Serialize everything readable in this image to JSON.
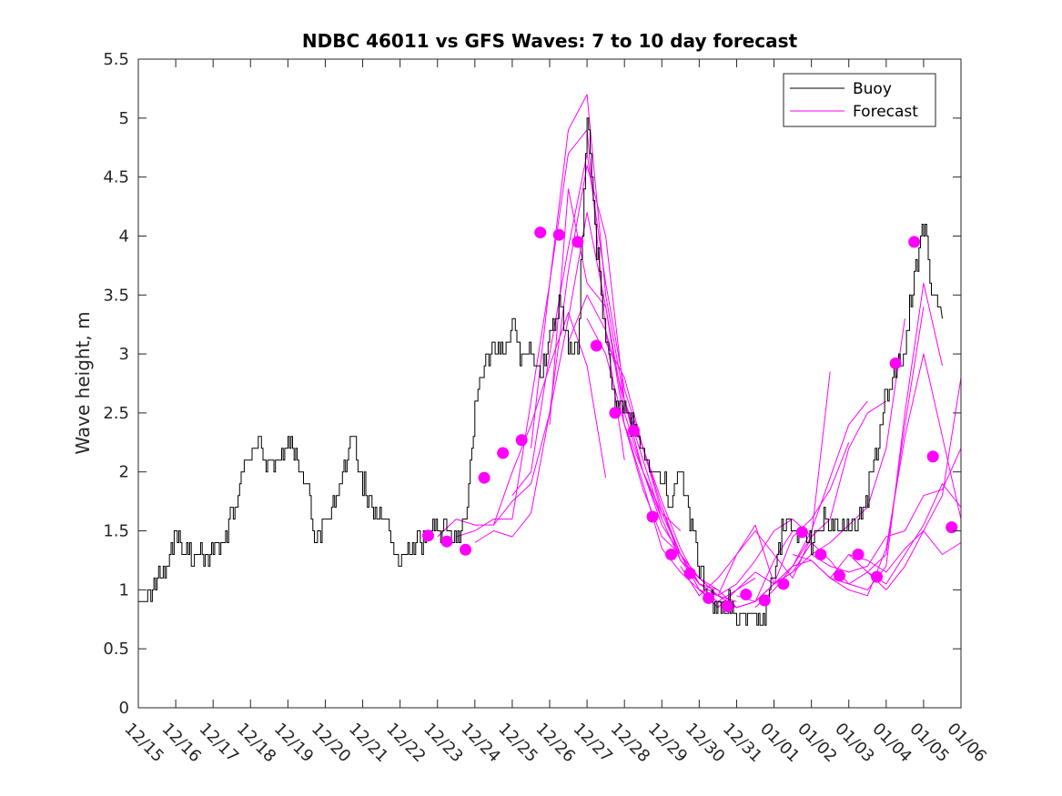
{
  "chart_data": {
    "type": "line",
    "title": "NDBC 46011 vs GFS Waves: 7 to 10 day forecast",
    "xlabel": "",
    "ylabel": "Wave height, m",
    "xlim": [
      0,
      22
    ],
    "ylim": [
      0,
      5.5
    ],
    "x_unit": "days since 12/15",
    "x_ticks": [
      0,
      1,
      2,
      3,
      4,
      5,
      6,
      7,
      8,
      9,
      10,
      11,
      12,
      13,
      14,
      15,
      16,
      17,
      18,
      19,
      20,
      21,
      22
    ],
    "x_tick_labels": [
      "12/15",
      "12/16",
      "12/17",
      "12/18",
      "12/19",
      "12/20",
      "12/21",
      "12/22",
      "12/23",
      "12/24",
      "12/25",
      "12/26",
      "12/27",
      "12/28",
      "12/29",
      "12/30",
      "12/31",
      "01/01",
      "01/02",
      "01/03",
      "01/04",
      "01/05",
      "01/06"
    ],
    "y_ticks": [
      0,
      0.5,
      1,
      1.5,
      2,
      2.5,
      3,
      3.5,
      4,
      4.5,
      5,
      5.5
    ],
    "y_tick_labels": [
      "0",
      "0.5",
      "1",
      "1.5",
      "2",
      "2.5",
      "3",
      "3.5",
      "4",
      "4.5",
      "5",
      "5.5"
    ],
    "legend": {
      "position": "top-right",
      "entries": [
        {
          "label": "Buoy",
          "color": "#000000"
        },
        {
          "label": "Forecast",
          "color": "#ff00ff"
        }
      ]
    },
    "buoy_color": "#000000",
    "forecast_color": "#ff00ff",
    "buoy_series": {
      "name": "Buoy",
      "x": [
        0,
        0.25,
        0.5,
        0.75,
        1,
        1.25,
        1.5,
        1.75,
        2,
        2.25,
        2.5,
        2.75,
        3,
        3.25,
        3.5,
        3.75,
        4,
        4.25,
        4.5,
        4.75,
        5,
        5.25,
        5.5,
        5.75,
        6,
        6.25,
        6.5,
        6.75,
        7,
        7.25,
        7.5,
        7.75,
        8,
        8.25,
        8.5,
        8.75,
        9,
        9.25,
        9.5,
        9.75,
        10,
        10.25,
        10.5,
        10.75,
        11,
        11.25,
        11.5,
        11.75,
        12,
        12.25,
        12.5,
        12.75,
        13,
        13.25,
        13.5,
        13.75,
        14,
        14.25,
        14.5,
        14.75,
        15,
        15.25,
        15.5,
        15.75,
        16,
        16.25,
        16.5,
        16.75,
        17,
        17.25,
        17.5,
        17.75,
        18,
        18.25,
        18.5,
        18.75,
        19,
        19.25,
        19.5,
        19.75,
        20,
        20.25,
        20.5,
        20.75,
        21,
        21.25,
        21.5
      ],
      "values": [
        1.0,
        0.95,
        1.15,
        1.2,
        1.5,
        1.35,
        1.25,
        1.3,
        1.35,
        1.4,
        1.65,
        1.9,
        2.15,
        2.2,
        2.05,
        2.15,
        2.2,
        2.15,
        1.85,
        1.45,
        1.55,
        1.7,
        2.05,
        2.3,
        1.9,
        1.7,
        1.6,
        1.5,
        1.25,
        1.3,
        1.4,
        1.5,
        1.5,
        1.55,
        1.45,
        1.6,
        2.5,
        2.85,
        3.1,
        2.95,
        3.3,
        2.95,
        3.05,
        2.85,
        3.2,
        3.4,
        3.05,
        3.0,
        5.1,
        3.9,
        3.1,
        2.6,
        2.5,
        2.4,
        2.2,
        1.95,
        1.95,
        1.75,
        2.05,
        1.6,
        1.2,
        0.95,
        0.8,
        0.9,
        0.8,
        0.75,
        0.75,
        0.8,
        1.1,
        1.55,
        1.5,
        1.5,
        1.4,
        1.6,
        1.55,
        1.5,
        1.6,
        1.55,
        1.8,
        2.2,
        2.7,
        2.8,
        3.1,
        3.7,
        4.1,
        3.5,
        3.3
      ]
    },
    "forecast_series": [
      {
        "name": "Forecast 1",
        "x": [
          8,
          8.5,
          9,
          9.5,
          10,
          10.5,
          11,
          11.5,
          12,
          12.5
        ],
        "values": [
          1.45,
          1.6,
          1.55,
          1.55,
          2.0,
          2.4,
          2.9,
          3.35,
          2.9,
          1.95
        ]
      },
      {
        "name": "Forecast 2",
        "x": [
          8.5,
          9,
          9.5,
          10,
          10.5,
          11,
          11.5,
          12,
          12.5,
          13
        ],
        "values": [
          1.45,
          1.5,
          1.6,
          1.6,
          2.6,
          3.6,
          4.7,
          4.9,
          3.2,
          2.1
        ]
      },
      {
        "name": "Forecast 3",
        "x": [
          9,
          9.5,
          10,
          10.5,
          11,
          11.5,
          12,
          12.5,
          13,
          13.5
        ],
        "values": [
          1.4,
          1.5,
          1.45,
          1.65,
          2.5,
          3.7,
          4.6,
          4.0,
          2.6,
          2.2
        ]
      },
      {
        "name": "Forecast 4",
        "x": [
          9.5,
          10,
          10.5,
          11,
          11.5,
          12,
          12.5,
          13,
          13.5,
          14
        ],
        "values": [
          1.55,
          1.75,
          1.9,
          2.5,
          3.3,
          4.2,
          3.4,
          2.5,
          2.0,
          1.6
        ]
      },
      {
        "name": "Forecast 5",
        "x": [
          10,
          10.5,
          11,
          11.5,
          12,
          12.5,
          13,
          13.5,
          14,
          14.5
        ],
        "values": [
          1.8,
          2.0,
          3.0,
          3.9,
          4.7,
          3.6,
          2.7,
          2.2,
          1.65,
          1.5
        ]
      },
      {
        "name": "Forecast 6",
        "x": [
          10.5,
          11,
          11.5,
          12,
          12.5,
          13,
          13.5,
          14,
          14.5,
          15
        ],
        "values": [
          2.2,
          3.6,
          4.9,
          5.2,
          3.5,
          2.6,
          2.0,
          1.55,
          1.3,
          1.1
        ]
      },
      {
        "name": "Forecast 7",
        "x": [
          11,
          11.5,
          12,
          12.5,
          13,
          13.5,
          14,
          14.5,
          15,
          15.5
        ],
        "values": [
          2.4,
          4.4,
          3.6,
          3.4,
          2.4,
          1.85,
          1.45,
          1.3,
          1.05,
          1.0
        ]
      },
      {
        "name": "Forecast 8",
        "x": [
          11.5,
          12,
          12.5,
          13,
          13.5,
          14,
          14.5,
          15,
          15.5,
          16
        ],
        "values": [
          3.1,
          3.5,
          3.2,
          2.6,
          2.1,
          1.6,
          1.25,
          1.1,
          0.95,
          0.9
        ]
      },
      {
        "name": "Forecast 9",
        "x": [
          12,
          12.5,
          13,
          13.5,
          14,
          14.5,
          15,
          15.5,
          16,
          16.5
        ],
        "values": [
          3.3,
          3.0,
          2.4,
          1.9,
          1.35,
          1.15,
          1.0,
          0.9,
          1.0,
          1.1
        ]
      },
      {
        "name": "Forecast 10",
        "x": [
          12.5,
          13,
          13.5,
          14,
          14.5,
          15,
          15.5,
          16,
          16.5,
          17
        ],
        "values": [
          3.1,
          2.8,
          2.2,
          1.7,
          1.25,
          1.05,
          0.95,
          0.85,
          0.9,
          1.05
        ]
      },
      {
        "name": "Forecast 11",
        "x": [
          13,
          13.5,
          14,
          14.5,
          15,
          15.5,
          16,
          16.5,
          17,
          17.5
        ],
        "values": [
          2.4,
          2.0,
          1.65,
          1.3,
          1.1,
          1.0,
          0.85,
          0.9,
          1.25,
          1.5
        ]
      },
      {
        "name": "Forecast 12",
        "x": [
          13.5,
          14,
          14.5,
          15,
          15.5,
          16,
          16.5,
          17,
          17.5,
          18
        ],
        "values": [
          2.2,
          1.75,
          1.35,
          1.05,
          0.95,
          1.05,
          1.25,
          1.5,
          1.6,
          1.45
        ]
      },
      {
        "name": "Forecast 13",
        "x": [
          14,
          14.5,
          15,
          15.5,
          16,
          16.5,
          17,
          17.5,
          18,
          18.5
        ],
        "values": [
          1.7,
          1.3,
          1.0,
          0.95,
          1.3,
          1.5,
          1.3,
          1.1,
          1.45,
          2.85
        ]
      },
      {
        "name": "Forecast 14",
        "x": [
          14.5,
          15,
          15.5,
          16,
          16.5,
          17,
          17.5,
          18,
          18.5,
          19
        ],
        "values": [
          1.2,
          0.95,
          1.1,
          1.3,
          1.55,
          1.05,
          1.45,
          1.6,
          1.85,
          2.25
        ]
      },
      {
        "name": "Forecast 15",
        "x": [
          15,
          15.5,
          16,
          16.5,
          17,
          17.5,
          18,
          18.5,
          19,
          19.5
        ],
        "values": [
          1.0,
          0.85,
          1.0,
          1.15,
          1.05,
          1.2,
          1.5,
          1.95,
          2.4,
          2.6
        ]
      },
      {
        "name": "Forecast 16",
        "x": [
          15.5,
          16,
          16.5,
          17,
          17.5,
          18,
          18.5,
          19,
          19.5,
          20
        ],
        "values": [
          0.9,
          0.85,
          0.9,
          1.05,
          1.2,
          1.45,
          1.6,
          2.2,
          2.5,
          2.6
        ]
      },
      {
        "name": "Forecast 17",
        "x": [
          16,
          16.5,
          17,
          17.5,
          18,
          18.5,
          19,
          19.5,
          20,
          20.5
        ],
        "values": [
          0.95,
          0.9,
          1.05,
          1.15,
          1.3,
          1.4,
          1.55,
          1.7,
          2.2,
          3.3
        ]
      },
      {
        "name": "Forecast 18",
        "x": [
          16.5,
          17,
          17.5,
          18,
          18.5,
          19,
          19.5,
          20,
          20.5,
          21
        ],
        "values": [
          0.85,
          1.0,
          1.2,
          1.25,
          1.1,
          1.05,
          1.15,
          1.3,
          2.4,
          3.4
        ]
      },
      {
        "name": "Forecast 19",
        "x": [
          17,
          17.5,
          18,
          18.5,
          19,
          19.5,
          20,
          20.5,
          21,
          21.5
        ],
        "values": [
          1.05,
          1.15,
          1.4,
          1.25,
          1.05,
          1.0,
          1.2,
          2.5,
          3.6,
          2.9
        ]
      },
      {
        "name": "Forecast 20",
        "x": [
          17.5,
          18,
          18.5,
          19,
          19.5,
          20,
          20.5,
          21,
          21.5,
          22
        ],
        "values": [
          1.3,
          1.25,
          1.1,
          1.0,
          0.95,
          1.35,
          2.3,
          3.0,
          2.3,
          1.6
        ]
      },
      {
        "name": "Forecast 21",
        "x": [
          18,
          18.5,
          19,
          19.5,
          20,
          20.5,
          21,
          21.5,
          22
        ],
        "values": [
          1.3,
          1.2,
          1.15,
          1.2,
          1.45,
          1.5,
          1.8,
          1.85,
          2.2
        ]
      },
      {
        "name": "Forecast 22",
        "x": [
          18.5,
          19,
          19.5,
          20,
          20.5,
          21,
          21.5,
          22
        ],
        "values": [
          1.1,
          1.3,
          1.25,
          1.15,
          1.35,
          1.5,
          1.3,
          1.4
        ]
      },
      {
        "name": "Forecast 23",
        "x": [
          19,
          19.5,
          20,
          20.5,
          21,
          21.5,
          22
        ],
        "values": [
          1.3,
          1.15,
          1.05,
          1.3,
          1.55,
          1.9,
          1.7
        ]
      },
      {
        "name": "Forecast 24",
        "x": [
          19.5,
          20,
          20.5,
          21,
          21.5,
          22
        ],
        "values": [
          1.15,
          1.0,
          1.2,
          1.5,
          1.8,
          2.8
        ]
      }
    ],
    "forecast_markers": {
      "x": [
        7.75,
        8.25,
        8.75,
        9.25,
        9.75,
        10.25,
        10.75,
        11.25,
        11.75,
        12.25,
        12.75,
        13.25,
        13.75,
        14.25,
        14.75,
        15.25,
        15.75,
        16.25,
        16.75,
        17.25,
        17.75,
        18.25,
        18.75,
        19.25,
        19.75,
        20.25,
        20.75,
        21.25,
        21.75
      ],
      "values": [
        1.46,
        1.41,
        1.34,
        1.95,
        2.16,
        2.27,
        4.03,
        4.01,
        3.95,
        3.07,
        2.5,
        2.35,
        1.62,
        1.3,
        1.14,
        0.93,
        0.86,
        0.96,
        0.91,
        1.05,
        1.49,
        1.3,
        1.12,
        1.3,
        1.11,
        2.92,
        3.95,
        2.13,
        1.53
      ]
    }
  }
}
